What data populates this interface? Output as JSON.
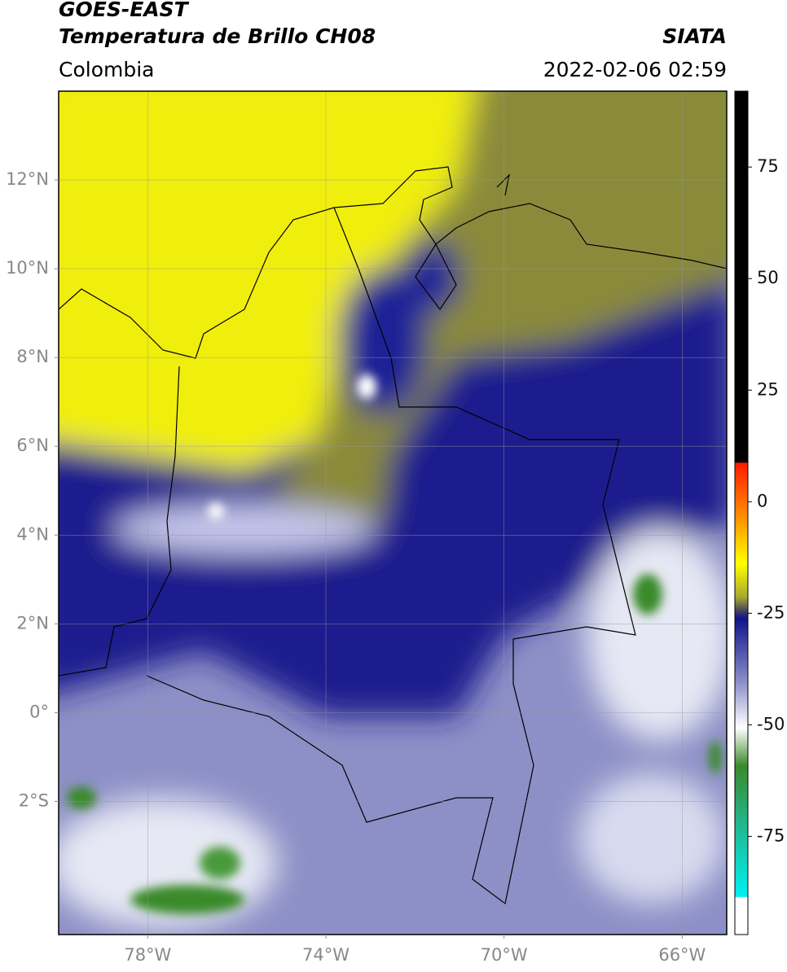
{
  "header": {
    "satellite": "GOES-EAST",
    "product": "Temperatura de Brillo CH08",
    "source": "SIATA",
    "region": "Colombia",
    "datetime": "2022-02-06 02:59"
  },
  "map": {
    "xlim": [
      -80,
      -65
    ],
    "ylim": [
      -5,
      14
    ],
    "xticks": [
      {
        "value": -78,
        "label": "78°W"
      },
      {
        "value": -74,
        "label": "74°W"
      },
      {
        "value": -70,
        "label": "70°W"
      },
      {
        "value": -66,
        "label": "66°W"
      }
    ],
    "yticks": [
      {
        "value": 12,
        "label": "12°N"
      },
      {
        "value": 10,
        "label": "10°N"
      },
      {
        "value": 8,
        "label": "8°N"
      },
      {
        "value": 6,
        "label": "6°N"
      },
      {
        "value": 4,
        "label": "4°N"
      },
      {
        "value": 2,
        "label": "2°N"
      },
      {
        "value": 0,
        "label": "0°"
      },
      {
        "value": -2,
        "label": "2°S"
      }
    ],
    "grid": true
  },
  "colorbar": {
    "lim": [
      -97,
      92
    ],
    "ticks": [
      75,
      50,
      25,
      0,
      -25,
      -50,
      -75
    ]
  }
}
